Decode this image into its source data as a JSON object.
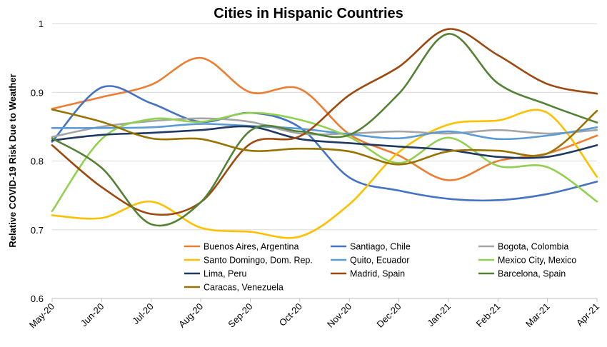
{
  "chart_data": {
    "type": "line",
    "title": "Cities in Hispanic Countries",
    "xlabel": "",
    "ylabel": "Relative COVID-19 Risk Due to Weather",
    "ylim": [
      0.6,
      1
    ],
    "yticks": [
      "0.6",
      "0.7",
      "0.8",
      "0.9",
      "1"
    ],
    "categories": [
      "May-20",
      "Jun-20",
      "Jul-20",
      "Aug-20",
      "Sep-20",
      "Oct-20",
      "Nov-20",
      "Dec-20",
      "Jan-21",
      "Feb-21",
      "Mar-21",
      "Apr-21"
    ],
    "grid": "horizontal",
    "legend_position": "inside-bottom",
    "series": [
      {
        "name": "Buenos Aires, Argentina",
        "color": "#ED7D31",
        "values": [
          0.876,
          0.893,
          0.911,
          0.95,
          0.9,
          0.905,
          0.839,
          0.808,
          0.772,
          0.8,
          0.811,
          0.837
        ]
      },
      {
        "name": "Santiago, Chile",
        "color": "#4472C4",
        "values": [
          0.828,
          0.907,
          0.884,
          0.857,
          0.87,
          0.849,
          0.776,
          0.757,
          0.745,
          0.743,
          0.752,
          0.77
        ]
      },
      {
        "name": "Bogota, Colombia",
        "color": "#A5A5A5",
        "values": [
          0.835,
          0.85,
          0.858,
          0.862,
          0.857,
          0.84,
          0.84,
          0.843,
          0.84,
          0.845,
          0.84,
          0.845
        ]
      },
      {
        "name": "Santo Domingo, Dom. Rep.",
        "color": "#FFC000",
        "values": [
          0.721,
          0.717,
          0.741,
          0.703,
          0.697,
          0.69,
          0.737,
          0.813,
          0.853,
          0.859,
          0.87,
          0.777
        ]
      },
      {
        "name": "Quito, Ecuador",
        "color": "#5B9BD5",
        "values": [
          0.848,
          0.848,
          0.849,
          0.854,
          0.851,
          0.847,
          0.839,
          0.833,
          0.843,
          0.832,
          0.837,
          0.849
        ]
      },
      {
        "name": "Mexico City, Mexico",
        "color": "#92D050",
        "values": [
          0.727,
          0.832,
          0.861,
          0.857,
          0.87,
          0.86,
          0.835,
          0.797,
          0.834,
          0.793,
          0.791,
          0.741
        ]
      },
      {
        "name": "Lima, Peru",
        "color": "#203864",
        "values": [
          0.83,
          0.838,
          0.841,
          0.845,
          0.85,
          0.832,
          0.826,
          0.821,
          0.816,
          0.806,
          0.806,
          0.823
        ]
      },
      {
        "name": "Madrid, Spain",
        "color": "#9E480E",
        "values": [
          0.823,
          0.762,
          0.723,
          0.74,
          0.825,
          0.836,
          0.896,
          0.937,
          0.992,
          0.954,
          0.912,
          0.898
        ]
      },
      {
        "name": "Barcelona, Spain",
        "color": "#548235",
        "values": [
          0.833,
          0.79,
          0.708,
          0.74,
          0.844,
          0.843,
          0.838,
          0.898,
          0.985,
          0.913,
          0.882,
          0.856
        ]
      },
      {
        "name": "Caracas, Venezuela",
        "color": "#997300",
        "values": [
          0.875,
          0.857,
          0.833,
          0.832,
          0.815,
          0.818,
          0.814,
          0.795,
          0.814,
          0.815,
          0.811,
          0.873
        ]
      }
    ]
  }
}
